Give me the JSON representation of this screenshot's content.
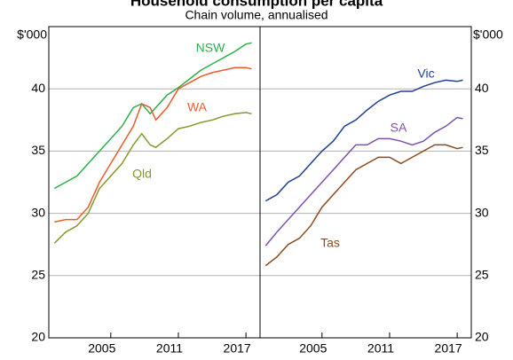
{
  "title": "Household consumption per capita",
  "subtitle": "Chain volume, annualised",
  "chart_data": [
    {
      "type": "line",
      "ylabel": "$'000",
      "xlim": [
        1999.5,
        2018.25
      ],
      "ylim": [
        20,
        45
      ],
      "xticks": [
        2005,
        2011,
        2017
      ],
      "yticks": [
        20,
        25,
        30,
        35,
        40
      ],
      "grid": true,
      "x": [
        2000,
        2001,
        2002,
        2003,
        2004,
        2005,
        2006,
        2007,
        2007.75,
        2008.5,
        2009,
        2010,
        2011,
        2012,
        2013,
        2014,
        2015,
        2016,
        2017,
        2017.5
      ],
      "series": [
        {
          "name": "NSW",
          "color": "#2bb04a",
          "values": [
            32.0,
            32.5,
            33.0,
            34.0,
            35.0,
            36.0,
            37.0,
            38.5,
            38.8,
            38.0,
            38.5,
            39.5,
            40.1,
            40.8,
            41.5,
            42.0,
            42.5,
            43.0,
            43.6,
            43.7
          ]
        },
        {
          "name": "WA",
          "color": "#f05a28",
          "values": [
            29.3,
            29.5,
            29.5,
            30.5,
            32.5,
            34.0,
            35.5,
            37.0,
            38.8,
            38.5,
            37.5,
            38.5,
            40.0,
            40.5,
            41.0,
            41.3,
            41.5,
            41.7,
            41.7,
            41.6
          ]
        },
        {
          "name": "Qld",
          "color": "#84992a",
          "values": [
            27.6,
            28.5,
            29.0,
            30.0,
            32.0,
            33.0,
            34.0,
            35.5,
            36.4,
            35.5,
            35.3,
            36.0,
            36.8,
            37.0,
            37.3,
            37.5,
            37.8,
            38.0,
            38.1,
            38.0
          ]
        }
      ]
    },
    {
      "type": "line",
      "ylabel": "$'000",
      "xlim": [
        1999.5,
        2018.25
      ],
      "ylim": [
        20,
        45
      ],
      "xticks": [
        2005,
        2011,
        2017
      ],
      "yticks": [
        20,
        25,
        30,
        35,
        40
      ],
      "grid": true,
      "x": [
        2000,
        2001,
        2002,
        2003,
        2004,
        2005,
        2006,
        2007,
        2008,
        2009,
        2010,
        2011,
        2012,
        2013,
        2014,
        2015,
        2016,
        2017,
        2017.5
      ],
      "series": [
        {
          "name": "Vic",
          "color": "#1c3f94",
          "values": [
            31.0,
            31.5,
            32.5,
            33.0,
            34.0,
            35.0,
            35.8,
            37.0,
            37.5,
            38.3,
            39.0,
            39.5,
            39.8,
            39.8,
            40.2,
            40.5,
            40.7,
            40.6,
            40.7
          ]
        },
        {
          "name": "SA",
          "color": "#7b52ae",
          "values": [
            27.4,
            28.5,
            29.5,
            30.5,
            31.5,
            32.5,
            33.5,
            34.5,
            35.5,
            35.5,
            36.0,
            36.0,
            35.8,
            35.5,
            35.8,
            36.5,
            37.0,
            37.7,
            37.6
          ]
        },
        {
          "name": "Tas",
          "color": "#8b4a1c",
          "values": [
            25.8,
            26.5,
            27.5,
            28.0,
            29.0,
            30.5,
            31.5,
            32.5,
            33.5,
            34.0,
            34.5,
            34.5,
            34.0,
            34.5,
            35.0,
            35.5,
            35.5,
            35.2,
            35.3
          ]
        }
      ]
    }
  ]
}
